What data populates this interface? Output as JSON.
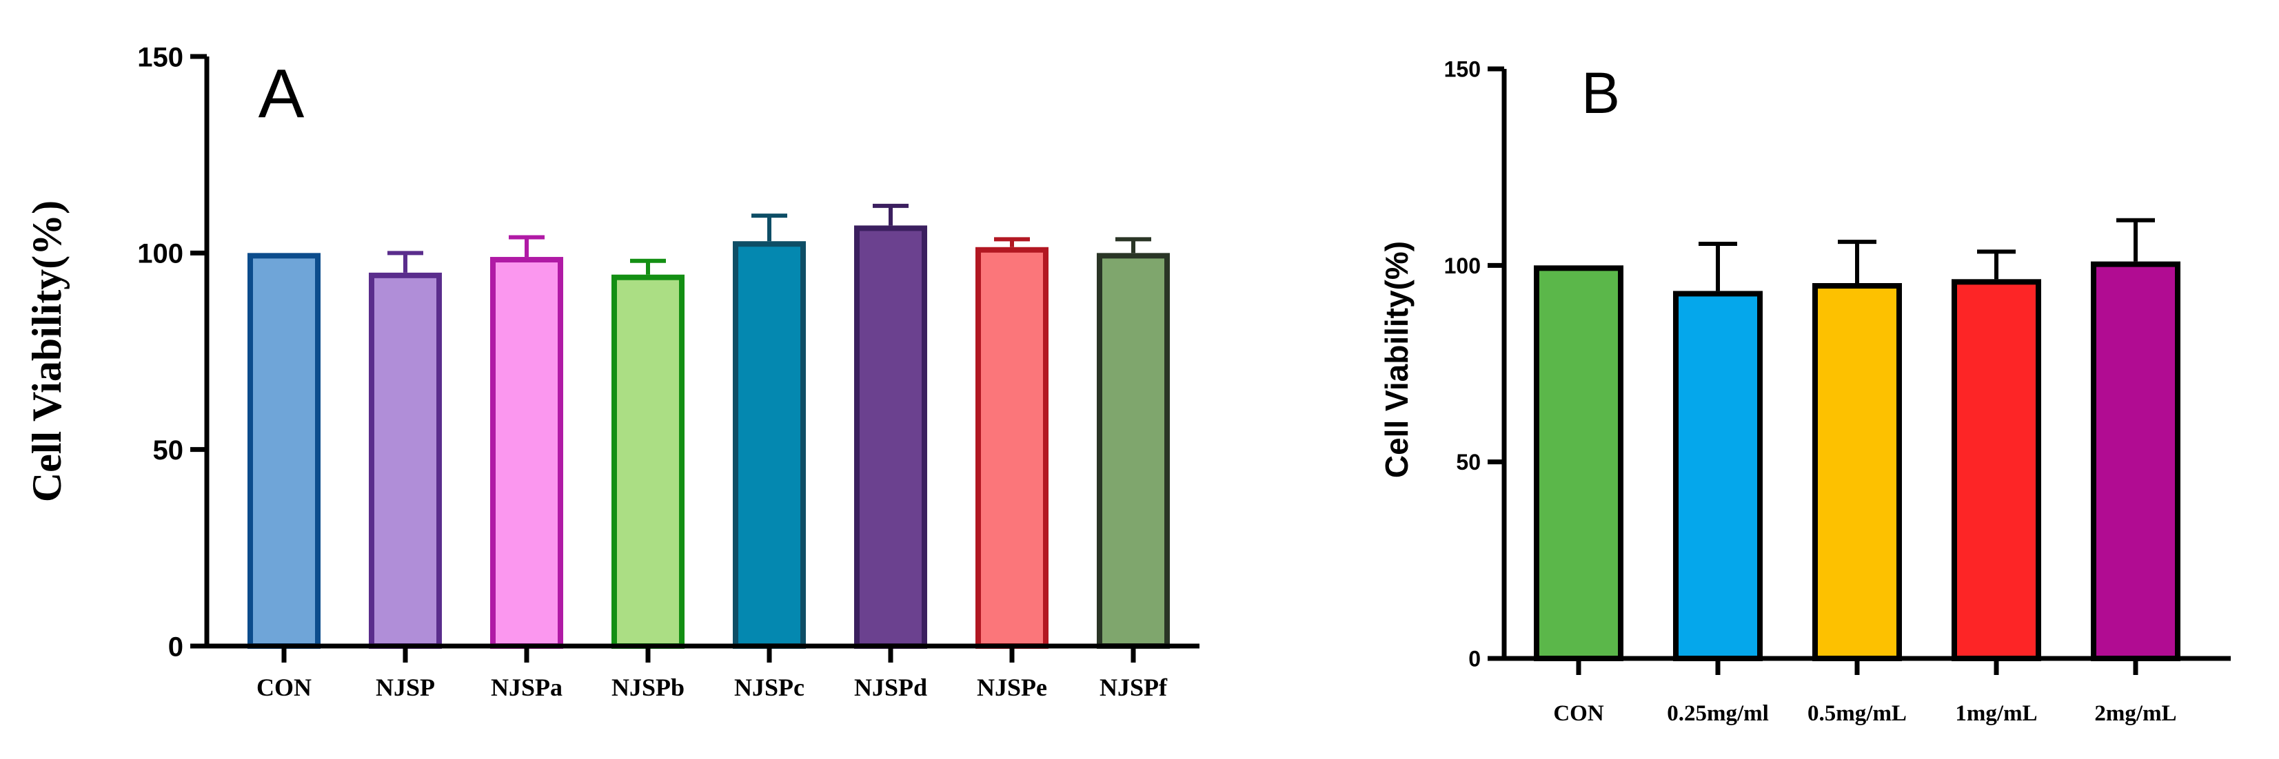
{
  "chart_data": [
    {
      "type": "bar",
      "panel_label": "A",
      "ylabel": "Cell Viability(%)",
      "xlabel": "",
      "ylim": [
        0,
        150
      ],
      "yticks": [
        0,
        50,
        100,
        150
      ],
      "grid": false,
      "error_bars": true,
      "categories": [
        "CON",
        "NJSP",
        "NJSPa",
        "NJSPb",
        "NJSPc",
        "NJSPd",
        "NJSPe",
        "NJSPf"
      ],
      "values": [
        100,
        95,
        99,
        94.5,
        103,
        107,
        101.5,
        100
      ],
      "errors": [
        0,
        5,
        5,
        3.5,
        6.5,
        5,
        2,
        3.5
      ],
      "fill_colors": [
        "#6fa5d8",
        "#b08ed8",
        "#fb97ef",
        "#abde84",
        "#0488b0",
        "#6b418f",
        "#fb767a",
        "#7fa66d"
      ],
      "edge_colors": [
        "#0c4c8c",
        "#5a2d8c",
        "#b01aa5",
        "#138f13",
        "#0e4e66",
        "#3b1f5f",
        "#b21722",
        "#2a3526"
      ]
    },
    {
      "type": "bar",
      "panel_label": "B",
      "ylabel": "Cell Viability(%)",
      "xlabel": "",
      "ylim": [
        0,
        150
      ],
      "yticks": [
        0,
        50,
        100,
        150
      ],
      "grid": false,
      "error_bars": true,
      "categories": [
        "CON",
        "0.25mg/ml",
        "0.5mg/mL",
        "1mg/mL",
        "2mg/mL"
      ],
      "values": [
        100,
        93.5,
        95.5,
        96.5,
        101
      ],
      "errors": [
        0,
        12,
        10.5,
        7,
        10.5
      ],
      "fill_colors": [
        "#5bb74a",
        "#05a7eb",
        "#fdc100",
        "#fd2526",
        "#b10c92"
      ],
      "edge_colors": [
        "#000000",
        "#000000",
        "#000000",
        "#000000",
        "#000000"
      ]
    }
  ]
}
